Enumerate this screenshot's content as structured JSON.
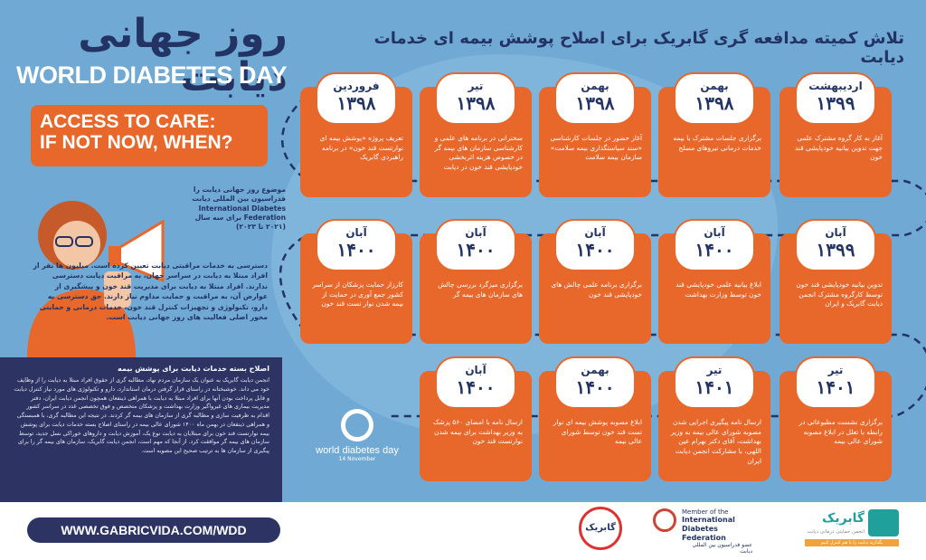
{
  "header": {
    "title_fa": "روز جهانی دیابت",
    "title_en": "WORLD DIABETES DAY",
    "headline_fa": "تلاش کمیته مدافعه گری گابریک برای اصلاح پوشش بیمه ای خدمات دیابت"
  },
  "cta": {
    "line1": "ACCESS TO CARE:",
    "line2": "IF NOT NOW, WHEN?"
  },
  "intro": {
    "text_a": "موضوع روز جهانی دیابت را فدراسیون بین المللی دیابت International Diabetes Federation برای سه سال (۲۰۲۱ تا ۲۰۲۳)",
    "text_b": "دسترسی به خدمات مراقبتی دیابت تعیین کرده است. میلیون ها نفر از افراد مبتلا به دیابت در سراسر جهان، به مراقبت دیابت دسترسی ندارند. افراد مبتلا به دیابت برای مدیریت قند خون و پیشگیری از عوارض آن، به مراقبت و حمایت مداوم نیاز دارند. حق دسترسی به دارو، تکنولوژی و تجهیزات کنترل قند خون، خدمات درمانی و حمایتی محور اصلی فعالیت های روز جهانی دیابت است."
  },
  "insurance": {
    "heading": "اصلاح بسته خدمات دیابت برای پوشش بیمه",
    "body": "انجمن دیابت گابریک به عنوان یک سازمان مردم نهاد، مطالبه گری از حقوق افراد مبتلا به دیابت را از وظایف خود می داند. خوشبختانه در راستای قرار گرفتن درمان استاندارد، دارو و تکنولوژی های مورد نیاز کنترل دیابت و قابل پرداخت بودن آنها برای افراد مبتلا به دیابت با همراهی ذینفعان همچون انجمن دیابت ایران، دفتر مدیریت بیماری های غیرواگیر وزارت بهداشت و پزشکان متخصص و فوق تخصصی غدد در سراسر کشور اقدام به ظرفیت سازی و مطالبه گری از سازمان های بیمه گر کردند. در نتیجه این مطالبه گری، با همبستگی و همراهی ذینفعان در بهمن ماه ۱۴۰۰ شورای عالی بیمه در راستای اصلاح بسته خدمات دیابت برای پوشش بیمه نوارتست قند خون برای مبتلایان به دیابت نوع یک، آموزش دیابت و داروهای خوراکی نسل جدید، توسط سازمان های بیمه گر موافقت کرد. از آنجا که مهم است، انجمن دیابت گابریک، سازمان های بیمه گر را برای پیگیری از سازمان ها به ترتیب صحیح این مصوبه است."
  },
  "timeline": [
    {
      "month": "اردیبهشت",
      "year": "۱۳۹۹",
      "text": "آغاز به کار گروه مشترک علمی جهت تدوین بیانیه خودپایشی قند خون"
    },
    {
      "month": "بهمن",
      "year": "۱۳۹۸",
      "text": "برگزاری جلسات مشترک با بیمه خدمات درمانی نیروهای مسلح"
    },
    {
      "month": "بهمن",
      "year": "۱۳۹۸",
      "text": "آغاز حضور در جلسات کارشناسی «سند سیاستگذاری بیمه سلامت» سازمان بیمه سلامت"
    },
    {
      "month": "تیر",
      "year": "۱۳۹۸",
      "text": "سخنرانی در برنامه های علمی و کارشناسی سازمان های بیمه گر در خصوص هزینه اثربخشی خودپایشی قند خون در دیابت"
    },
    {
      "month": "فروردین",
      "year": "۱۳۹۸",
      "text": "تعریف پروژه «پوشش بیمه ای نوارتست قند خون» در برنامه راهبردی گابریک"
    },
    {
      "month": "آبان",
      "year": "۱۳۹۹",
      "text": "تدوین بیانیه خودپایشی قند خون توسط کارگروه مشترک انجمن دیابت گابریک و ایران"
    },
    {
      "month": "آبان",
      "year": "۱۴۰۰",
      "text": "ابلاغ بیانیه علمی خودپایشی قند خون توسط وزارت بهداشت"
    },
    {
      "month": "آبان",
      "year": "۱۴۰۰",
      "text": "برگزاری برنامه علمی چالش های خودپایشی قند خون"
    },
    {
      "month": "آبان",
      "year": "۱۴۰۰",
      "text": "برگزاری میزگرد بررسی چالش های سازمان های بیمه گر"
    },
    {
      "month": "آبان",
      "year": "۱۴۰۰",
      "text": "کارزار حمایت پزشکان از سراسر کشور جمع آوری در حمایت از بیمه شدن نوار تست قند خون"
    },
    {
      "month": "تیر",
      "year": "۱۴۰۱",
      "text": "برگزاری نشست مطبوعاتی در رابطه با تعلل در ابلاغ مصوبه شورای عالی بیمه"
    },
    {
      "month": "تیر",
      "year": "۱۴۰۱",
      "text": "ارسال نامه پیگیری اجرایی شدن مصوبه شورای عالی بیمه به وزیر بهداشت، آقای دکتر بهرام عین اللهی، با مشارکت انجمن دیابت ایران"
    },
    {
      "month": "بهمن",
      "year": "۱۴۰۰",
      "text": "ابلاغ مصوبه پوشش بیمه ای نوار تست قند خون توسط شورای عالی بیمه"
    },
    {
      "month": "آبان",
      "year": "۱۴۰۰",
      "text": "ارسال نامه با امضای ۵۶۰ پزشک به وزیر بهداشت برای بیمه شدن نوارتست قند خون"
    }
  ],
  "wdd_logo": {
    "name": "world diabetes day",
    "date": "14 November"
  },
  "footer": {
    "url": "WWW.GABRICVIDA.COM/WDD",
    "logo_left": "گابریک",
    "idf_line1": "Member of the",
    "idf_line2": "International",
    "idf_line3": "Diabetes Federation",
    "idf_fa": "عضو فدراسیون بین المللی دیابت",
    "gabric_name": "گابریک",
    "gabric_sub": "انجمن حمایتی درمانی دیابت",
    "gabric_bar": "بگذارید دیابت را با هم کنترل کنیم"
  },
  "colors": {
    "bg": "#6fa9d4",
    "orange": "#e8672a",
    "navy": "#2d3464",
    "teal": "#1fa09b"
  }
}
